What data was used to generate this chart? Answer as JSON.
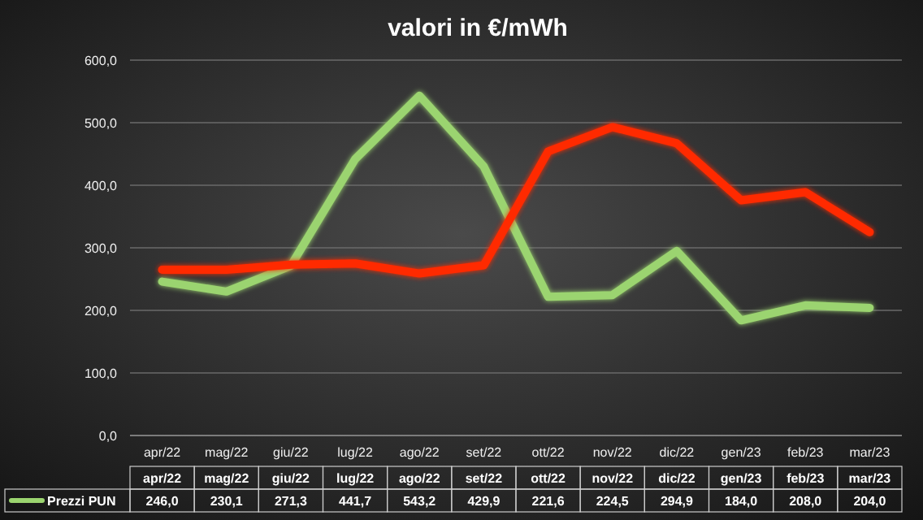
{
  "chart_data": {
    "type": "line",
    "title": "valori in €/mWh",
    "categories": [
      "apr/22",
      "mag/22",
      "giu/22",
      "lug/22",
      "ago/22",
      "set/22",
      "ott/22",
      "nov/22",
      "dic/22",
      "gen/23",
      "feb/23",
      "mar/23"
    ],
    "series": [
      {
        "name": "Prezzi PUN",
        "color": "#9bd46f",
        "values": [
          246.0,
          230.1,
          271.3,
          441.7,
          543.2,
          429.9,
          221.6,
          224.5,
          294.9,
          184.0,
          208.0,
          204.0
        ],
        "value_labels": [
          "246,0",
          "230,1",
          "271,3",
          "441,7",
          "543,2",
          "429,9",
          "221,6",
          "224,5",
          "294,9",
          "184,0",
          "208,0",
          "204,0"
        ]
      },
      {
        "color": "#ff2a00",
        "values": [
          265,
          265,
          273,
          275,
          259,
          272,
          454,
          493,
          467,
          376,
          389,
          325
        ]
      }
    ],
    "ylim": [
      0,
      600
    ],
    "yticks": [
      {
        "value": 0,
        "label": "0,0"
      },
      {
        "value": 100,
        "label": "100,0"
      },
      {
        "value": 200,
        "label": "200,0"
      },
      {
        "value": 300,
        "label": "300,0"
      },
      {
        "value": 400,
        "label": "400,0"
      },
      {
        "value": 500,
        "label": "500,0"
      },
      {
        "value": 600,
        "label": "600,0"
      }
    ],
    "grid": "y",
    "legend": "bottom",
    "marker": "none",
    "line_style": "solid"
  }
}
